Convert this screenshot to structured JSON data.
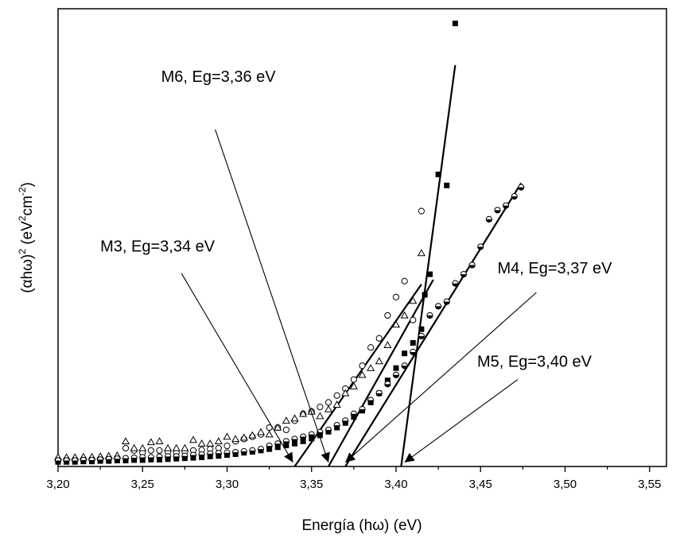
{
  "chart_data": {
    "type": "scatter",
    "title": "",
    "xlabel": "Energía (hω) (eV)",
    "ylabel_parts": [
      "(αhω)",
      "2",
      " (eV",
      "2",
      "cm",
      "-2",
      ")"
    ],
    "xlim": [
      3.2,
      3.56
    ],
    "ylim": [
      0,
      100
    ],
    "y_tick_labels_shown": false,
    "grid": false,
    "legend": "none",
    "x_ticks": [
      {
        "value": 3.2,
        "label": "3,20"
      },
      {
        "value": 3.25,
        "label": "3,25"
      },
      {
        "value": 3.3,
        "label": "3,30"
      },
      {
        "value": 3.35,
        "label": "3,35"
      },
      {
        "value": 3.4,
        "label": "3,40"
      },
      {
        "value": 3.45,
        "label": "3,45"
      },
      {
        "value": 3.5,
        "label": "3,50"
      },
      {
        "value": 3.55,
        "label": "3,55"
      }
    ],
    "series": [
      {
        "marker": "filled-square",
        "x": [
          3.2,
          3.205,
          3.21,
          3.215,
          3.22,
          3.225,
          3.23,
          3.235,
          3.24,
          3.245,
          3.25,
          3.255,
          3.26,
          3.265,
          3.27,
          3.275,
          3.28,
          3.285,
          3.29,
          3.295,
          3.3,
          3.305,
          3.31,
          3.315,
          3.32,
          3.325,
          3.33,
          3.335,
          3.34,
          3.345,
          3.35,
          3.355,
          3.36,
          3.365,
          3.37,
          3.375,
          3.38,
          3.385,
          3.39,
          3.395,
          3.4,
          3.405,
          3.41,
          3.415,
          3.417,
          3.42,
          3.425,
          3.43,
          3.435
        ],
        "y": [
          1.0,
          1.0,
          1.0,
          1.1,
          1.1,
          1.2,
          1.2,
          1.3,
          1.3,
          1.4,
          1.4,
          1.5,
          1.5,
          1.6,
          1.7,
          1.8,
          1.9,
          2.0,
          2.2,
          2.3,
          2.5,
          2.7,
          3.0,
          3.2,
          3.5,
          3.8,
          4.2,
          4.6,
          5.0,
          5.5,
          6.1,
          6.8,
          7.6,
          8.5,
          9.5,
          10.8,
          12.2,
          14.0,
          16.0,
          18.8,
          21.5,
          24.7,
          27.0,
          30.0,
          37.5,
          42.0,
          63.8,
          61.4,
          96.8
        ]
      },
      {
        "marker": "open-circle",
        "x": [
          3.2,
          3.205,
          3.21,
          3.215,
          3.22,
          3.225,
          3.23,
          3.235,
          3.24,
          3.245,
          3.25,
          3.255,
          3.26,
          3.265,
          3.27,
          3.275,
          3.28,
          3.285,
          3.29,
          3.295,
          3.3,
          3.305,
          3.31,
          3.315,
          3.32,
          3.325,
          3.33,
          3.335,
          3.34,
          3.345,
          3.35,
          3.355,
          3.36,
          3.365,
          3.37,
          3.375,
          3.38,
          3.385,
          3.39,
          3.395,
          3.4,
          3.405,
          3.41,
          3.415
        ],
        "y": [
          1.5,
          1.5,
          1.5,
          1.6,
          1.6,
          1.7,
          1.8,
          1.8,
          4.0,
          3.5,
          3.0,
          3.5,
          3.5,
          3.2,
          3.0,
          3.2,
          3.5,
          3.6,
          3.8,
          4.0,
          4.5,
          5.5,
          6.0,
          6.5,
          7.0,
          8.5,
          8.5,
          8.0,
          10.0,
          11.5,
          12.0,
          13.0,
          14.0,
          15.5,
          17.0,
          19.0,
          22.0,
          26.0,
          28.0,
          33.0,
          37.0,
          40.5,
          32.0,
          55.8
        ]
      },
      {
        "marker": "open-triangle",
        "x": [
          3.2,
          3.205,
          3.21,
          3.215,
          3.22,
          3.225,
          3.23,
          3.235,
          3.24,
          3.245,
          3.25,
          3.255,
          3.26,
          3.265,
          3.27,
          3.275,
          3.28,
          3.285,
          3.29,
          3.295,
          3.3,
          3.305,
          3.31,
          3.315,
          3.32,
          3.325,
          3.33,
          3.335,
          3.34,
          3.345,
          3.35,
          3.355,
          3.36,
          3.365,
          3.37,
          3.375,
          3.38,
          3.385,
          3.39,
          3.395,
          3.4,
          3.405,
          3.41,
          3.415
        ],
        "y": [
          2.0,
          2.0,
          2.0,
          2.1,
          2.1,
          2.2,
          2.3,
          2.4,
          5.5,
          4.0,
          4.0,
          5.3,
          5.5,
          4.0,
          4.0,
          4.0,
          5.8,
          5.0,
          5.0,
          5.5,
          6.5,
          6.0,
          6.3,
          6.8,
          7.5,
          7.0,
          8.5,
          10.0,
          10.5,
          11.5,
          12.0,
          11.0,
          12.5,
          13.5,
          16.0,
          17.5,
          20.0,
          21.5,
          23.0,
          26.5,
          31.0,
          33.0,
          36.2,
          46.6
        ]
      },
      {
        "marker": "half-filled-circle",
        "x": [
          3.2,
          3.205,
          3.21,
          3.215,
          3.22,
          3.225,
          3.23,
          3.235,
          3.24,
          3.245,
          3.25,
          3.255,
          3.26,
          3.265,
          3.27,
          3.275,
          3.28,
          3.285,
          3.29,
          3.295,
          3.3,
          3.305,
          3.31,
          3.315,
          3.32,
          3.325,
          3.33,
          3.335,
          3.34,
          3.345,
          3.35,
          3.355,
          3.36,
          3.365,
          3.37,
          3.375,
          3.38,
          3.385,
          3.39,
          3.395,
          3.4,
          3.405,
          3.41,
          3.415,
          3.42,
          3.425,
          3.43,
          3.435,
          3.44,
          3.445,
          3.45,
          3.455,
          3.46,
          3.465,
          3.47,
          3.474
        ],
        "y": [
          1.3,
          1.3,
          1.3,
          1.4,
          1.4,
          1.5,
          1.6,
          1.7,
          1.8,
          1.9,
          2.0,
          2.0,
          2.1,
          2.2,
          2.2,
          2.3,
          2.5,
          2.6,
          2.8,
          2.9,
          3.0,
          3.1,
          3.3,
          3.5,
          3.8,
          4.5,
          5.0,
          5.5,
          6.0,
          6.5,
          7.0,
          7.5,
          8.0,
          9.0,
          10.0,
          11.5,
          12.5,
          14.5,
          16.0,
          18.0,
          20.0,
          22.0,
          25.0,
          28.5,
          33.0,
          35.0,
          36.0,
          40.0,
          42.0,
          44.0,
          48.0,
          54.0,
          56.0,
          57.0,
          59.0,
          61.0
        ]
      }
    ],
    "fit_lines": [
      {
        "label": "M3",
        "x": [
          3.34,
          3.415
        ],
        "y": [
          0,
          39.8
        ]
      },
      {
        "label": "M6",
        "x": [
          3.36,
          3.422
        ],
        "y": [
          0,
          40.8
        ]
      },
      {
        "label": "M4",
        "x": [
          3.37,
          3.474
        ],
        "y": [
          0,
          61.9
        ]
      },
      {
        "label": "M5",
        "x": [
          3.403,
          3.435
        ],
        "y": [
          0,
          87.7
        ]
      }
    ],
    "annotations": [
      {
        "text": "M6,  Eg=3,36 eV",
        "x": 3.261,
        "y": 84.0,
        "arrow_from": [
          3.293,
          73.6
        ],
        "arrow_to": [
          3.36,
          0.9
        ]
      },
      {
        "text": "M3,  Eg=3,34 eV",
        "x": 3.225,
        "y": 47.0,
        "arrow_from": [
          3.273,
          42.2
        ],
        "arrow_to": [
          3.339,
          0.9
        ]
      },
      {
        "text": "M4,  Eg=3,37 eV",
        "x": 3.46,
        "y": 42.2,
        "arrow_from": [
          3.483,
          38.0
        ],
        "arrow_to": [
          3.37,
          0.9
        ]
      },
      {
        "text": "M5,  Eg=3,40 eV",
        "x": 3.448,
        "y": 21.8,
        "arrow_from": [
          3.472,
          19.0
        ],
        "arrow_to": [
          3.405,
          0.9
        ]
      }
    ]
  }
}
